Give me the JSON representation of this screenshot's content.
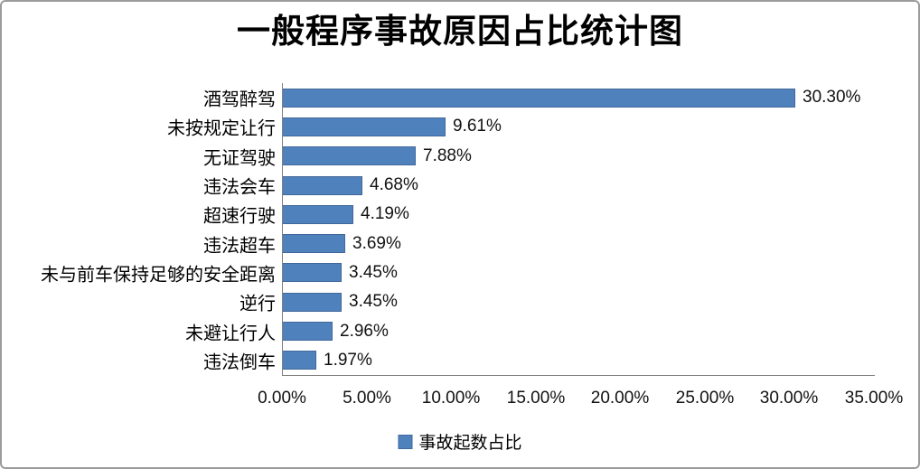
{
  "page": {
    "title": "一般程序事故原因占比统计图"
  },
  "legend": {
    "label": "事故起数占比",
    "marker_color": "#4f81bd"
  },
  "chart_data": {
    "type": "bar",
    "orientation": "horizontal",
    "title": "一般程序事故原因占比统计图",
    "series_name": "事故起数占比",
    "categories": [
      "酒驾醉驾",
      "未按规定让行",
      "无证驾驶",
      "违法会车",
      "超速行驶",
      "违法超车",
      "未与前车保持足够的安全距离",
      "逆行",
      "未避让行人",
      "违法倒车"
    ],
    "values": [
      30.3,
      9.61,
      7.88,
      4.68,
      4.19,
      3.69,
      3.45,
      3.45,
      2.96,
      1.97
    ],
    "value_labels": [
      "30.30%",
      "9.61%",
      "7.88%",
      "4.68%",
      "4.19%",
      "3.69%",
      "3.45%",
      "3.45%",
      "2.96%",
      "1.97%"
    ],
    "xlabel": "",
    "ylabel": "",
    "xlim": [
      0,
      35
    ],
    "x_tick_values": [
      0,
      5,
      10,
      15,
      20,
      25,
      30,
      35
    ],
    "x_tick_labels": [
      "0.00%",
      "5.00%",
      "10.00%",
      "15.00%",
      "20.00%",
      "25.00%",
      "30.00%",
      "35.00%"
    ],
    "grid": false,
    "legend_position": "bottom",
    "bar_color": "#4f81bd",
    "bar_border_color": "#41689b",
    "axis_color": "#7f7f7f"
  }
}
